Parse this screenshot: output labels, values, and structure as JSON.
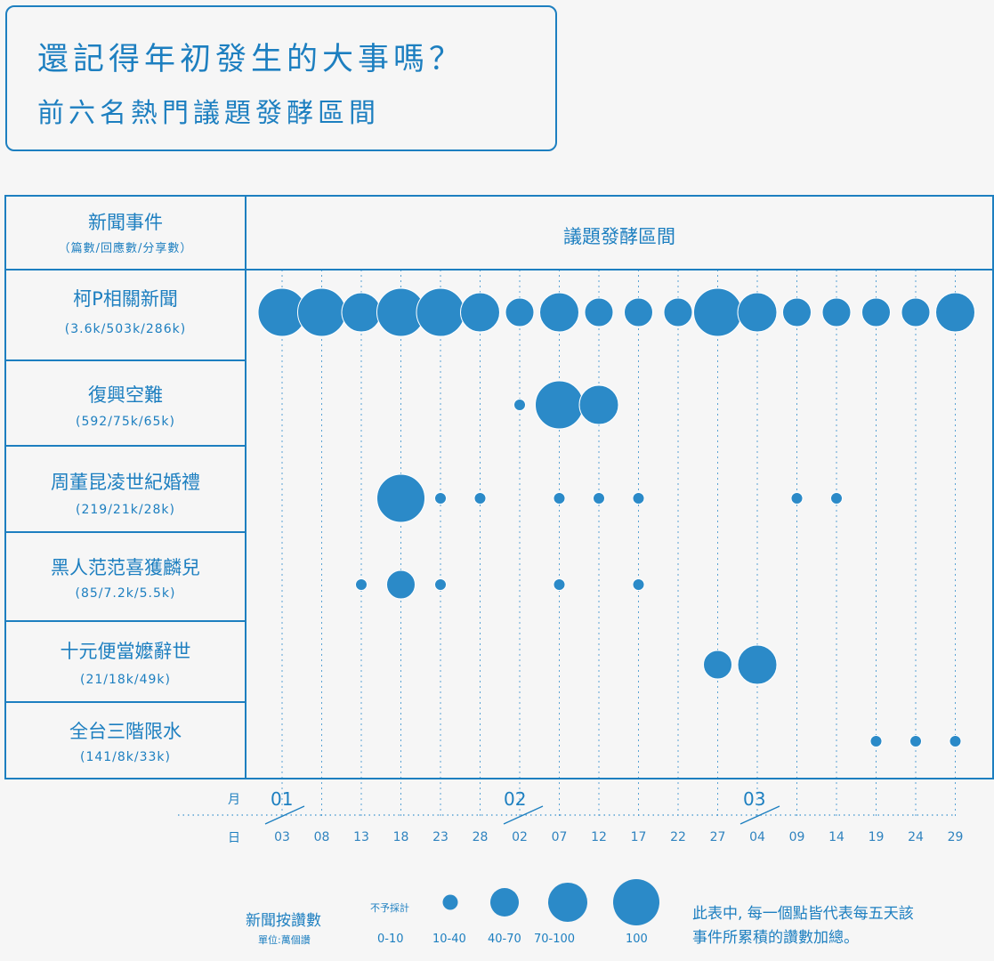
{
  "title": {
    "line1": "還記得年初發生的大事嗎？",
    "line2": "前六名熱門議題發酵區間"
  },
  "table": {
    "col1_header": "新聞事件",
    "col1_subheader": "（篇數/回應數/分享數）",
    "col2_header": "議題發酵區間"
  },
  "axis": {
    "month_label": "月",
    "day_label": "日",
    "months": [
      "01",
      "02",
      "03"
    ],
    "days": [
      "03",
      "08",
      "13",
      "18",
      "23",
      "28",
      "02",
      "07",
      "12",
      "17",
      "22",
      "27",
      "04",
      "09",
      "14",
      "19",
      "24",
      "29"
    ]
  },
  "legend": {
    "title": "新聞按讚數",
    "unit": "單位:萬個讚",
    "excluded_label": "不予採計",
    "levels": [
      "0-10",
      "10-40",
      "40-70",
      "70-100",
      "100"
    ]
  },
  "note": {
    "line1": "此表中, 每一個點皆代表每五天該",
    "line2": "事件所累積的讚數加總。"
  },
  "colors": {
    "accent": "#1d7fc0",
    "dot": "#2b8ac8",
    "background": "#f6f6f6"
  },
  "chart_data": {
    "type": "scatter",
    "title": "前六名熱門議題發酵區間",
    "x_categories": [
      "01/03",
      "01/08",
      "01/13",
      "01/18",
      "01/23",
      "01/28",
      "02/02",
      "02/07",
      "02/12",
      "02/17",
      "02/22",
      "02/27",
      "03/04",
      "03/09",
      "03/14",
      "03/19",
      "03/24",
      "03/29"
    ],
    "size_levels": [
      "不予採計",
      "10-40",
      "40-70",
      "70-100",
      "100"
    ],
    "series": [
      {
        "name": "柯P相關新聞",
        "stats": "(3.6k/503k/286k)",
        "points": [
          {
            "x": "01/03",
            "level": "100"
          },
          {
            "x": "01/08",
            "level": "100"
          },
          {
            "x": "01/13",
            "level": "70-100"
          },
          {
            "x": "01/18",
            "level": "100"
          },
          {
            "x": "01/23",
            "level": "100"
          },
          {
            "x": "01/28",
            "level": "70-100"
          },
          {
            "x": "02/02",
            "level": "40-70"
          },
          {
            "x": "02/07",
            "level": "70-100"
          },
          {
            "x": "02/12",
            "level": "40-70"
          },
          {
            "x": "02/17",
            "level": "40-70"
          },
          {
            "x": "02/22",
            "level": "40-70"
          },
          {
            "x": "02/27",
            "level": "100"
          },
          {
            "x": "03/04",
            "level": "70-100"
          },
          {
            "x": "03/09",
            "level": "40-70"
          },
          {
            "x": "03/14",
            "level": "40-70"
          },
          {
            "x": "03/19",
            "level": "40-70"
          },
          {
            "x": "03/24",
            "level": "40-70"
          },
          {
            "x": "03/29",
            "level": "70-100"
          }
        ]
      },
      {
        "name": "復興空難",
        "stats": "(592/75k/65k)",
        "points": [
          {
            "x": "02/02",
            "level": "不予採計"
          },
          {
            "x": "02/07",
            "level": "100"
          },
          {
            "x": "02/12",
            "level": "70-100"
          }
        ]
      },
      {
        "name": "周董昆凌世紀婚禮",
        "stats": "(219/21k/28k)",
        "points": [
          {
            "x": "01/18",
            "level": "100"
          },
          {
            "x": "01/23",
            "level": "不予採計"
          },
          {
            "x": "01/28",
            "level": "不予採計"
          },
          {
            "x": "02/07",
            "level": "不予採計"
          },
          {
            "x": "02/12",
            "level": "不予採計"
          },
          {
            "x": "02/17",
            "level": "不予採計"
          },
          {
            "x": "03/09",
            "level": "不予採計"
          },
          {
            "x": "03/14",
            "level": "不予採計"
          }
        ]
      },
      {
        "name": "黑人范范喜獲麟兒",
        "stats": "(85/7.2k/5.5k)",
        "points": [
          {
            "x": "01/13",
            "level": "不予採計"
          },
          {
            "x": "01/18",
            "level": "40-70"
          },
          {
            "x": "01/23",
            "level": "不予採計"
          },
          {
            "x": "02/07",
            "level": "不予採計"
          },
          {
            "x": "02/17",
            "level": "不予採計"
          }
        ]
      },
      {
        "name": "十元便當嬤辭世",
        "stats": "(21/18k/49k)",
        "points": [
          {
            "x": "02/27",
            "level": "40-70"
          },
          {
            "x": "03/04",
            "level": "70-100"
          }
        ]
      },
      {
        "name": "全台三階限水",
        "stats": "(141/8k/33k)",
        "points": [
          {
            "x": "03/19",
            "level": "不予採計"
          },
          {
            "x": "03/24",
            "level": "不予採計"
          },
          {
            "x": "03/29",
            "level": "不予採計"
          }
        ]
      }
    ]
  }
}
